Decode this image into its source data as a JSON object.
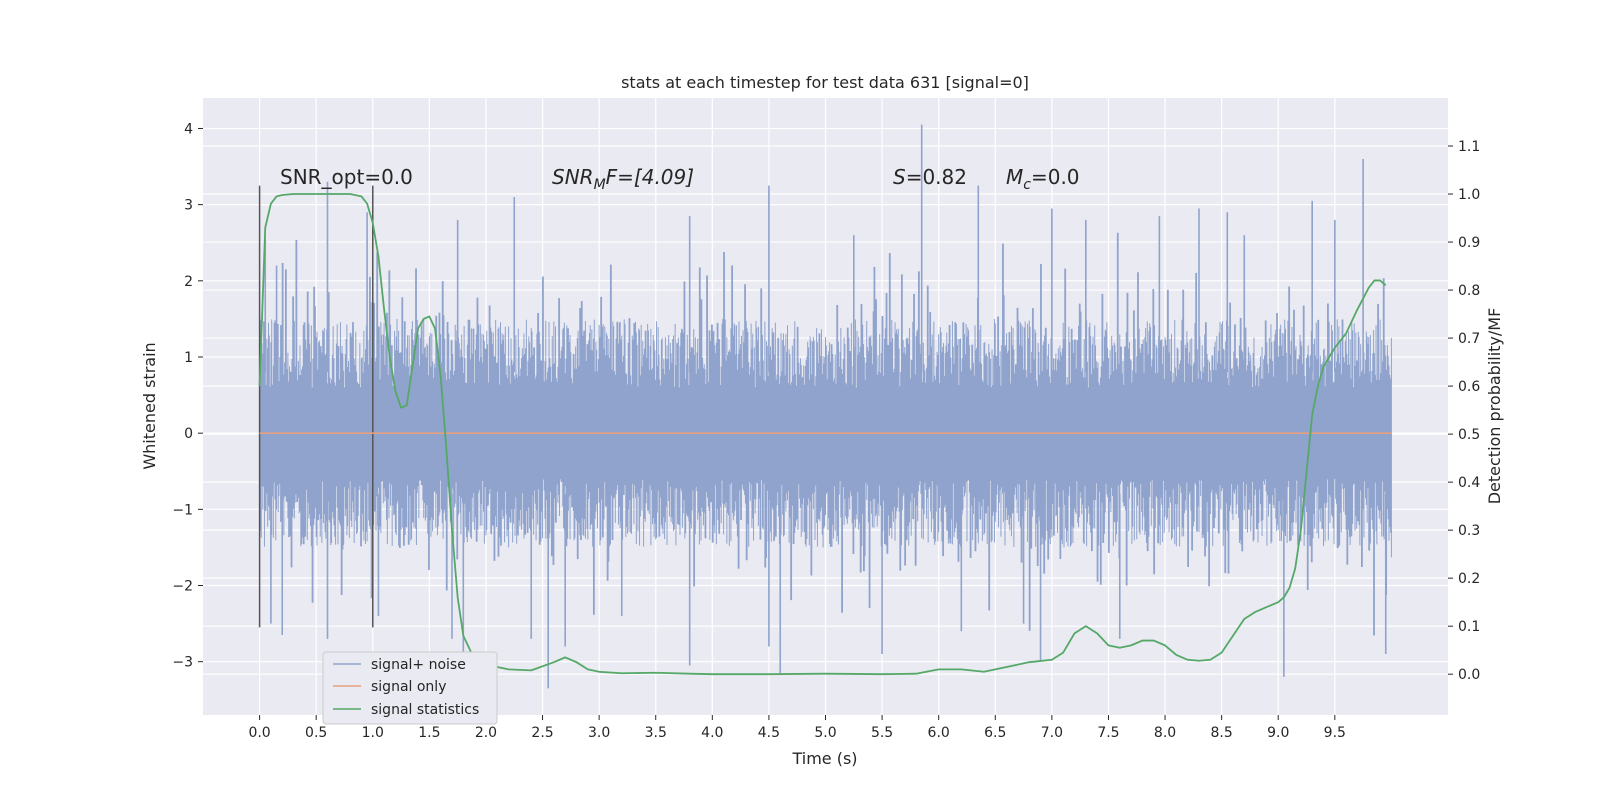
{
  "chart_data": {
    "type": "line",
    "title": "stats at each timestep for test data 631 [signal=0]",
    "xlabel": "Time (s)",
    "ylabel": "Whitened strain",
    "y2label": "Detection probability/MF",
    "xlim": [
      -0.5,
      10.5
    ],
    "ylim": [
      -3.7,
      4.4
    ],
    "y2lim": [
      -0.085,
      1.2
    ],
    "x_ticks": [
      0.0,
      0.5,
      1.0,
      1.5,
      2.0,
      2.5,
      3.0,
      3.5,
      4.0,
      4.5,
      5.0,
      5.5,
      6.0,
      6.5,
      7.0,
      7.5,
      8.0,
      8.5,
      9.0,
      9.5
    ],
    "x_tick_labels": [
      "0.0",
      "0.5",
      "1.0",
      "1.5",
      "2.0",
      "2.5",
      "3.0",
      "3.5",
      "4.0",
      "4.5",
      "5.0",
      "5.5",
      "6.0",
      "6.5",
      "7.0",
      "7.5",
      "8.0",
      "8.5",
      "9.0",
      "9.5"
    ],
    "y_ticks": [
      -3,
      -2,
      -1,
      0,
      1,
      2,
      3,
      4
    ],
    "y_tick_labels": [
      "−3",
      "−2",
      "−1",
      "0",
      "1",
      "2",
      "3",
      "4"
    ],
    "y2_ticks": [
      0.0,
      0.1,
      0.2,
      0.3,
      0.4,
      0.5,
      0.6,
      0.7,
      0.8,
      0.9,
      1.0,
      1.1
    ],
    "y2_tick_labels": [
      "0.0",
      "0.1",
      "0.2",
      "0.3",
      "0.4",
      "0.5",
      "0.6",
      "0.7",
      "0.8",
      "0.9",
      "1.0",
      "1.1"
    ],
    "grid": true,
    "legend_position": "lower-left",
    "annotations": {
      "snr_opt": "SNR_opt=0.0",
      "snr_mf_prefix": "SNR",
      "snr_mf_sub": "M",
      "snr_mf_suffix": "F=[4.09]",
      "s_symbol": "S",
      "s_value": "=0.82",
      "mc_symbol": "M",
      "mc_sub": "c",
      "mc_value": "=0.0"
    },
    "vertical_markers": [
      {
        "x": 0.0,
        "y_range": [
          -2.55,
          3.25
        ]
      },
      {
        "x": 1.0,
        "y_range": [
          -2.55,
          3.25
        ]
      }
    ],
    "series": [
      {
        "name": "signal+ noise",
        "color": "#8fa3cc",
        "axis": "left",
        "x_range": [
          0.0,
          10.0
        ],
        "envelope": {
          "typical_min": -1.5,
          "typical_max": 1.5,
          "peaks": [
            {
              "x": 0.05,
              "y": 2.55
            },
            {
              "x": 0.1,
              "y": -2.5
            },
            {
              "x": 0.15,
              "y": 2.2
            },
            {
              "x": 0.2,
              "y": -2.65
            },
            {
              "x": 0.6,
              "y": 3.3
            },
            {
              "x": 0.6,
              "y": -2.7
            },
            {
              "x": 0.95,
              "y": 2.9
            },
            {
              "x": 1.05,
              "y": -2.4
            },
            {
              "x": 1.7,
              "y": -2.7
            },
            {
              "x": 1.75,
              "y": 2.8
            },
            {
              "x": 1.8,
              "y": -3.0
            },
            {
              "x": 2.25,
              "y": 3.1
            },
            {
              "x": 2.4,
              "y": -2.7
            },
            {
              "x": 2.55,
              "y": -3.35
            },
            {
              "x": 2.7,
              "y": -2.8
            },
            {
              "x": 3.2,
              "y": -2.4
            },
            {
              "x": 3.8,
              "y": 2.85
            },
            {
              "x": 3.8,
              "y": -3.05
            },
            {
              "x": 4.5,
              "y": 3.25
            },
            {
              "x": 4.5,
              "y": -2.8
            },
            {
              "x": 4.6,
              "y": -3.15
            },
            {
              "x": 5.25,
              "y": 2.6
            },
            {
              "x": 5.5,
              "y": -2.9
            },
            {
              "x": 5.85,
              "y": 4.05
            },
            {
              "x": 6.2,
              "y": -2.6
            },
            {
              "x": 6.35,
              "y": 3.25
            },
            {
              "x": 6.75,
              "y": -2.5
            },
            {
              "x": 6.9,
              "y": -3.0
            },
            {
              "x": 7.0,
              "y": 2.95
            },
            {
              "x": 7.3,
              "y": 2.8
            },
            {
              "x": 7.6,
              "y": -2.7
            },
            {
              "x": 7.95,
              "y": 2.85
            },
            {
              "x": 8.3,
              "y": 2.95
            },
            {
              "x": 8.55,
              "y": 2.9
            },
            {
              "x": 8.7,
              "y": 2.6
            },
            {
              "x": 9.05,
              "y": -3.2
            },
            {
              "x": 9.3,
              "y": 3.05
            },
            {
              "x": 9.5,
              "y": 2.8
            },
            {
              "x": 9.75,
              "y": 3.6
            },
            {
              "x": 9.95,
              "y": -2.9
            }
          ]
        }
      },
      {
        "name": "signal only",
        "color": "#e6a07e",
        "axis": "left",
        "x": [
          0.0,
          10.0
        ],
        "y": [
          0.0,
          0.0
        ]
      },
      {
        "name": "signal statistics",
        "color": "#55a868",
        "axis": "right",
        "x": [
          0.0,
          0.05,
          0.1,
          0.15,
          0.2,
          0.3,
          0.4,
          0.5,
          0.6,
          0.7,
          0.8,
          0.9,
          0.95,
          1.0,
          1.05,
          1.1,
          1.15,
          1.2,
          1.25,
          1.3,
          1.35,
          1.4,
          1.45,
          1.5,
          1.55,
          1.6,
          1.65,
          1.7,
          1.75,
          1.8,
          1.9,
          2.0,
          2.2,
          2.4,
          2.6,
          2.7,
          2.8,
          2.9,
          3.0,
          3.2,
          3.5,
          3.8,
          4.0,
          4.5,
          5.0,
          5.5,
          5.8,
          6.0,
          6.2,
          6.4,
          6.6,
          6.8,
          7.0,
          7.1,
          7.2,
          7.3,
          7.4,
          7.5,
          7.6,
          7.7,
          7.8,
          7.9,
          8.0,
          8.1,
          8.2,
          8.3,
          8.4,
          8.5,
          8.6,
          8.7,
          8.8,
          8.9,
          9.0,
          9.05,
          9.1,
          9.15,
          9.2,
          9.25,
          9.3,
          9.35,
          9.4,
          9.5,
          9.6,
          9.7,
          9.8,
          9.85,
          9.9,
          9.95
        ],
        "y": [
          0.6,
          0.93,
          0.98,
          0.995,
          0.998,
          1.0,
          1.0,
          1.0,
          1.0,
          1.0,
          1.0,
          0.995,
          0.98,
          0.94,
          0.87,
          0.76,
          0.66,
          0.59,
          0.555,
          0.56,
          0.64,
          0.72,
          0.74,
          0.745,
          0.72,
          0.62,
          0.47,
          0.3,
          0.16,
          0.08,
          0.03,
          0.02,
          0.01,
          0.008,
          0.025,
          0.035,
          0.025,
          0.01,
          0.005,
          0.002,
          0.003,
          0.001,
          0.0,
          0.0,
          0.001,
          0.0,
          0.001,
          0.01,
          0.01,
          0.005,
          0.015,
          0.025,
          0.03,
          0.045,
          0.085,
          0.1,
          0.085,
          0.06,
          0.055,
          0.06,
          0.07,
          0.07,
          0.06,
          0.04,
          0.03,
          0.028,
          0.03,
          0.045,
          0.08,
          0.115,
          0.13,
          0.14,
          0.15,
          0.16,
          0.18,
          0.22,
          0.3,
          0.42,
          0.54,
          0.6,
          0.64,
          0.68,
          0.71,
          0.76,
          0.805,
          0.82,
          0.82,
          0.81
        ]
      }
    ]
  }
}
